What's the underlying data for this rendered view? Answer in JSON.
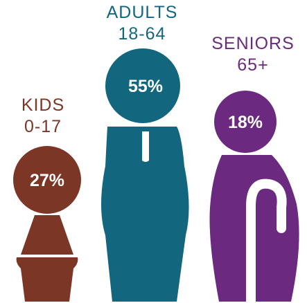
{
  "chart_data": {
    "type": "pictograph",
    "title": "",
    "categories": [
      {
        "label_line1": "KIDS",
        "label_line2": "0-17",
        "value": 27,
        "value_label": "27%",
        "color": "#7b3626"
      },
      {
        "label_line1": "ADULTS",
        "label_line2": "18-64",
        "value": 55,
        "value_label": "55%",
        "color": "#12677f"
      },
      {
        "label_line1": "SENIORS",
        "label_line2": "65+",
        "value": 18,
        "value_label": "18%",
        "color": "#6b2a80"
      }
    ],
    "unit": "%"
  }
}
